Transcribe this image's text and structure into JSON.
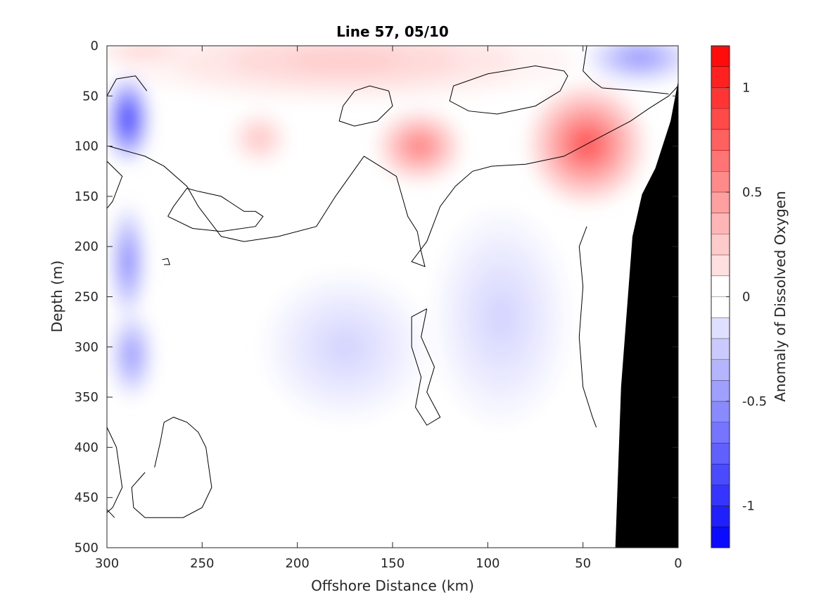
{
  "chart_data": {
    "type": "heatmap",
    "title": "Line 57, 05/10",
    "xlabel": "Offshore Distance (km)",
    "ylabel": "Depth (m)",
    "xlim": [
      300,
      0
    ],
    "ylim": [
      500,
      0
    ],
    "x_reversed": true,
    "y_reversed": true,
    "xticks": [
      300,
      250,
      200,
      150,
      100,
      50,
      0
    ],
    "yticks": [
      0,
      50,
      100,
      150,
      200,
      250,
      300,
      350,
      400,
      450,
      500
    ],
    "colorbar": {
      "label": "Anomaly of Dissolved Oxygen",
      "range": [
        -1.2,
        1.2
      ],
      "step": 0.1,
      "ticks": [
        -1,
        -0.5,
        0,
        0.5,
        1
      ],
      "colors": {
        "negative": "#0000ff",
        "zero": "#ffffff",
        "positive": "#ff0000"
      }
    },
    "land_color": "#000000",
    "bathymetry": [
      [
        33,
        500
      ],
      [
        30,
        340
      ],
      [
        24,
        190
      ],
      [
        19,
        148
      ],
      [
        12,
        122
      ],
      [
        4,
        75
      ],
      [
        0,
        35
      ]
    ],
    "features": [
      {
        "type": "low",
        "x": 289,
        "y": 73,
        "value": -1.0,
        "rx": 11,
        "ry": 42
      },
      {
        "type": "low",
        "x": 289,
        "y": 215,
        "value": -0.6,
        "rx": 9,
        "ry": 55
      },
      {
        "type": "low",
        "x": 287,
        "y": 308,
        "value": -0.5,
        "rx": 11,
        "ry": 42
      },
      {
        "type": "low",
        "x": 20,
        "y": 12,
        "value": -0.5,
        "rx": 28,
        "ry": 25
      },
      {
        "type": "low",
        "x": 93,
        "y": 270,
        "value": -0.2,
        "rx": 35,
        "ry": 105
      },
      {
        "type": "low",
        "x": 175,
        "y": 300,
        "value": -0.2,
        "rx": 42,
        "ry": 72
      },
      {
        "type": "high",
        "x": 48,
        "y": 98,
        "value": 0.8,
        "rx": 30,
        "ry": 58
      },
      {
        "type": "high",
        "x": 136,
        "y": 100,
        "value": 0.6,
        "rx": 22,
        "ry": 35
      },
      {
        "type": "high",
        "x": 220,
        "y": 92,
        "value": 0.3,
        "rx": 14,
        "ry": 25
      },
      {
        "type": "high",
        "x": 175,
        "y": 15,
        "value": 0.25,
        "rx": 120,
        "ry": 40
      },
      {
        "type": "high",
        "x": 280,
        "y": 5,
        "value": 0.25,
        "rx": 30,
        "ry": 12
      }
    ],
    "zero_contours": [
      [
        [
          279,
          45
        ],
        [
          285,
          30
        ],
        [
          295,
          33
        ],
        [
          300,
          50
        ]
      ],
      [
        [
          300,
          115
        ],
        [
          292,
          130
        ],
        [
          297,
          155
        ],
        [
          300,
          162
        ]
      ],
      [
        [
          299,
          100
        ],
        [
          280,
          110
        ],
        [
          270,
          120
        ],
        [
          258,
          140
        ],
        [
          252,
          160
        ],
        [
          240,
          190
        ],
        [
          228,
          195
        ],
        [
          210,
          190
        ],
        [
          190,
          180
        ],
        [
          180,
          150
        ],
        [
          165,
          110
        ],
        [
          148,
          130
        ],
        [
          142,
          170
        ],
        [
          137,
          185
        ],
        [
          135,
          205
        ],
        [
          133,
          220
        ],
        [
          140,
          215
        ],
        [
          132,
          195
        ],
        [
          125,
          160
        ],
        [
          117,
          140
        ],
        [
          108,
          125
        ],
        [
          98,
          120
        ],
        [
          80,
          118
        ],
        [
          60,
          110
        ],
        [
          40,
          90
        ],
        [
          25,
          75
        ],
        [
          15,
          62
        ],
        [
          5,
          50
        ],
        [
          0,
          40
        ]
      ],
      [
        [
          268,
          170
        ],
        [
          265,
          160
        ],
        [
          258,
          142
        ],
        [
          252,
          145
        ],
        [
          240,
          150
        ],
        [
          228,
          165
        ],
        [
          222,
          165
        ],
        [
          218,
          170
        ],
        [
          222,
          180
        ],
        [
          240,
          185
        ],
        [
          255,
          182
        ],
        [
          268,
          170
        ]
      ],
      [
        [
          271,
          213
        ],
        [
          268,
          212
        ],
        [
          267,
          218
        ],
        [
          270,
          218
        ]
      ],
      [
        [
          176,
          60
        ],
        [
          170,
          45
        ],
        [
          162,
          40
        ],
        [
          152,
          45
        ],
        [
          150,
          60
        ],
        [
          158,
          75
        ],
        [
          170,
          80
        ],
        [
          178,
          75
        ],
        [
          176,
          60
        ]
      ],
      [
        [
          132,
          262
        ],
        [
          135,
          290
        ],
        [
          128,
          320
        ],
        [
          132,
          345
        ],
        [
          125,
          370
        ],
        [
          132,
          378
        ],
        [
          138,
          360
        ],
        [
          135,
          330
        ],
        [
          140,
          300
        ],
        [
          140,
          270
        ],
        [
          132,
          262
        ]
      ],
      [
        [
          275,
          420
        ],
        [
          272,
          395
        ],
        [
          270,
          375
        ],
        [
          265,
          370
        ],
        [
          258,
          375
        ],
        [
          252,
          385
        ],
        [
          248,
          400
        ],
        [
          245,
          440
        ],
        [
          250,
          460
        ],
        [
          260,
          470
        ],
        [
          270,
          470
        ],
        [
          280,
          470
        ],
        [
          286,
          460
        ],
        [
          287,
          440
        ],
        [
          280,
          425
        ]
      ],
      [
        [
          300,
          380
        ],
        [
          295,
          400
        ],
        [
          292,
          440
        ],
        [
          297,
          460
        ],
        [
          300,
          465
        ]
      ],
      [
        [
          300,
          462
        ],
        [
          296,
          470
        ]
      ],
      [
        [
          60,
          25
        ],
        [
          75,
          20
        ],
        [
          100,
          28
        ],
        [
          118,
          40
        ],
        [
          120,
          55
        ],
        [
          110,
          65
        ],
        [
          95,
          68
        ],
        [
          75,
          60
        ],
        [
          62,
          45
        ],
        [
          58,
          30
        ],
        [
          60,
          25
        ]
      ],
      [
        [
          48,
          0
        ],
        [
          50,
          25
        ],
        [
          45,
          35
        ],
        [
          40,
          42
        ],
        [
          20,
          45
        ],
        [
          5,
          48
        ]
      ],
      [
        [
          48,
          180
        ],
        [
          52,
          200
        ],
        [
          50,
          240
        ],
        [
          52,
          290
        ],
        [
          50,
          340
        ],
        [
          45,
          370
        ],
        [
          43,
          380
        ]
      ]
    ]
  }
}
